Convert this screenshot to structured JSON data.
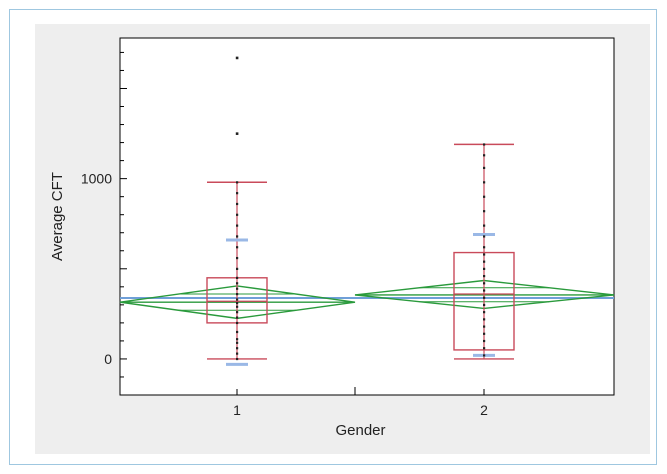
{
  "chart_data": {
    "type": "box",
    "xlabel": "Gender",
    "ylabel": "Average CFT",
    "categories": [
      "1",
      "2"
    ],
    "ylim": [
      -200,
      1780
    ],
    "y_ticks": [
      0,
      1000
    ],
    "groups": [
      {
        "category": "1",
        "whisker_low": 0,
        "q1": 200,
        "median": 320,
        "q3": 450,
        "whisker_high": 980,
        "mean": 315,
        "ci_low": 225,
        "ci_high": 405,
        "std_low": -30,
        "std_high": 660,
        "outliers": [
          1250,
          1670
        ],
        "points": [
          0,
          30,
          60,
          90,
          110,
          150,
          200,
          230,
          260,
          290,
          310,
          330,
          360,
          390,
          420,
          450,
          500,
          560,
          620,
          680,
          740,
          800,
          860,
          920,
          980
        ]
      },
      {
        "category": "2",
        "whisker_low": 0,
        "q1": 50,
        "median": 360,
        "q3": 590,
        "whisker_high": 1190,
        "mean": 355,
        "ci_low": 280,
        "ci_high": 435,
        "std_low": 20,
        "std_high": 690,
        "outliers": [],
        "points": [
          20,
          60,
          100,
          140,
          180,
          220,
          260,
          300,
          340,
          380,
          420,
          460,
          500,
          540,
          580,
          620,
          680,
          740,
          820,
          900,
          980,
          1060,
          1130,
          1190
        ]
      }
    ],
    "grand_mean": 338,
    "colors": {
      "box": "#c94a5a",
      "diamond": "#2a9a3c",
      "std": "#9ab8e6",
      "grand_mean": "#6f9fd8",
      "points": "#222222"
    }
  }
}
